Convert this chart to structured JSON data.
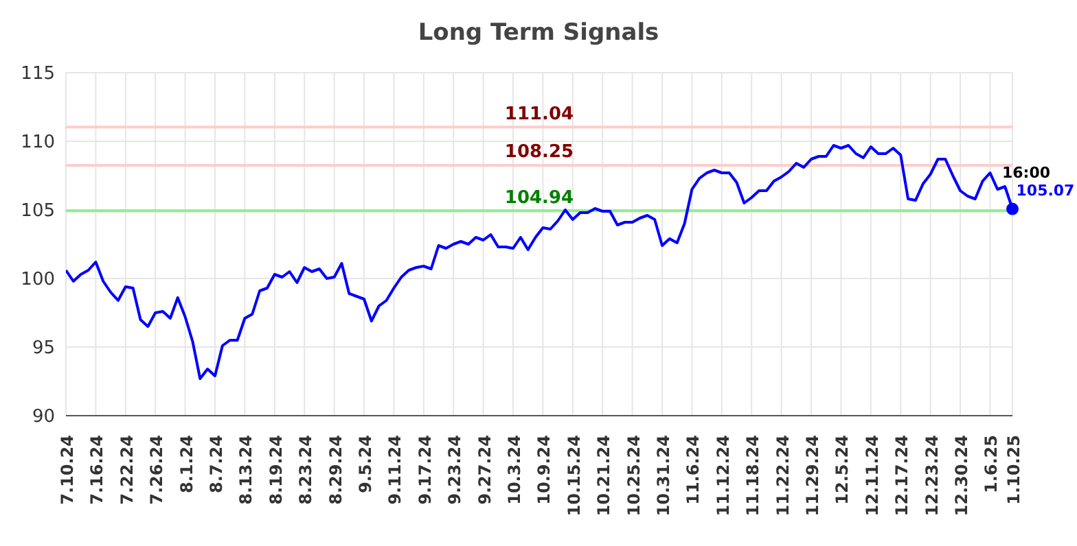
{
  "chart_data": {
    "type": "line",
    "title": "Long Term Signals",
    "categories": [
      "7.10.24",
      null,
      null,
      null,
      "7.16.24",
      null,
      null,
      null,
      "7.22.24",
      null,
      null,
      null,
      "7.26.24",
      null,
      null,
      null,
      "8.1.24",
      null,
      null,
      null,
      "8.7.24",
      null,
      null,
      null,
      "8.13.24",
      null,
      null,
      null,
      "8.19.24",
      null,
      null,
      null,
      "8.23.24",
      null,
      null,
      null,
      "8.29.24",
      null,
      null,
      null,
      "9.5.24",
      null,
      null,
      null,
      "9.11.24",
      null,
      null,
      null,
      "9.17.24",
      null,
      null,
      null,
      "9.23.24",
      null,
      null,
      null,
      "9.27.24",
      null,
      null,
      null,
      "10.3.24",
      null,
      null,
      null,
      "10.9.24",
      null,
      null,
      null,
      "10.15.24",
      null,
      null,
      null,
      "10.21.24",
      null,
      null,
      null,
      "10.25.24",
      null,
      null,
      null,
      "10.31.24",
      null,
      null,
      null,
      "11.6.24",
      null,
      null,
      null,
      "11.12.24",
      null,
      null,
      null,
      "11.18.24",
      null,
      null,
      null,
      "11.22.24",
      null,
      null,
      null,
      "11.29.24",
      null,
      null,
      null,
      "12.5.24",
      null,
      null,
      null,
      "12.11.24",
      null,
      null,
      null,
      "12.17.24",
      null,
      null,
      null,
      "12.23.24",
      null,
      null,
      null,
      "12.30.24",
      null,
      null,
      null,
      "1.6.25",
      null,
      null,
      "1.10.25"
    ],
    "series": [
      {
        "color": "#0000ff",
        "values": [
          100.6,
          99.8,
          100.3,
          100.6,
          101.2,
          99.8,
          99.0,
          98.4,
          99.4,
          99.3,
          97.0,
          96.5,
          97.5,
          97.6,
          97.1,
          98.6,
          97.2,
          95.4,
          92.7,
          93.4,
          92.9,
          95.1,
          95.5,
          95.5,
          97.1,
          97.4,
          99.1,
          99.3,
          100.3,
          100.1,
          100.5,
          99.7,
          100.8,
          100.5,
          100.7,
          100.0,
          100.1,
          101.1,
          98.9,
          98.7,
          98.5,
          96.9,
          98.0,
          98.4,
          99.3,
          100.1,
          100.6,
          100.8,
          100.9,
          100.7,
          102.4,
          102.2,
          102.5,
          102.7,
          102.5,
          103.0,
          102.8,
          103.2,
          102.3,
          102.3,
          102.2,
          103.0,
          102.1,
          103.0,
          103.7,
          103.6,
          104.2,
          105.0,
          104.3,
          104.8,
          104.8,
          105.1,
          104.9,
          104.9,
          103.9,
          104.1,
          104.1,
          104.4,
          104.6,
          104.3,
          102.4,
          102.9,
          102.6,
          104.0,
          106.5,
          107.3,
          107.7,
          107.9,
          107.7,
          107.7,
          107.0,
          105.5,
          105.9,
          106.4,
          106.4,
          107.1,
          107.4,
          107.8,
          108.4,
          108.1,
          108.7,
          108.9,
          108.9,
          109.7,
          109.5,
          109.7,
          109.1,
          108.8,
          109.6,
          109.1,
          109.1,
          109.5,
          109.0,
          105.8,
          105.7,
          106.9,
          107.6,
          108.7,
          108.7,
          107.5,
          106.4,
          106.0,
          105.8,
          107.1,
          107.7,
          106.5,
          106.7,
          105.07
        ],
        "value_labels": [
          null,
          null,
          null,
          null,
          null,
          null,
          null,
          null,
          null,
          null,
          null,
          null,
          null,
          null,
          null,
          null,
          null,
          null,
          null,
          null,
          null,
          null,
          null,
          null,
          null,
          null,
          null,
          null,
          null,
          null,
          null,
          null,
          null,
          null,
          null,
          null,
          null,
          null,
          null,
          null,
          null,
          null,
          null,
          null,
          null,
          null,
          null,
          null,
          null,
          null,
          null,
          null,
          null,
          null,
          null,
          null,
          null,
          null,
          null,
          null,
          null,
          null,
          null,
          null,
          null,
          null,
          null,
          null,
          null,
          null,
          null,
          null,
          null,
          null,
          null,
          null,
          null,
          null,
          null,
          null,
          null,
          null,
          null,
          null,
          null,
          null,
          null,
          null,
          null,
          null,
          null,
          null,
          null,
          null,
          null,
          null,
          null,
          null,
          null,
          null,
          null,
          null,
          null,
          null,
          null,
          null,
          null,
          null,
          null,
          null,
          null,
          null,
          null,
          null,
          null,
          null,
          null,
          null,
          null,
          null,
          null,
          null,
          null,
          null,
          null,
          null,
          null,
          "105.07"
        ]
      }
    ],
    "ylim": [
      90,
      115
    ],
    "yticks": [
      90,
      95,
      100,
      105,
      110,
      115
    ],
    "grid": true,
    "marker": "none",
    "line_style": "solid",
    "legend": false,
    "ref_lines": [
      {
        "axis": "y",
        "value": 111.04,
        "label": "111.04",
        "color": "#ffcccc"
      },
      {
        "axis": "y",
        "value": 108.25,
        "label": "108.25",
        "color": "#ffcccc"
      },
      {
        "axis": "y",
        "value": 104.94,
        "label": "104.94",
        "color": "#90ee90"
      }
    ],
    "annotations": [
      {
        "text": "16:00",
        "x": "1.10.25",
        "y": 105.07
      }
    ]
  }
}
